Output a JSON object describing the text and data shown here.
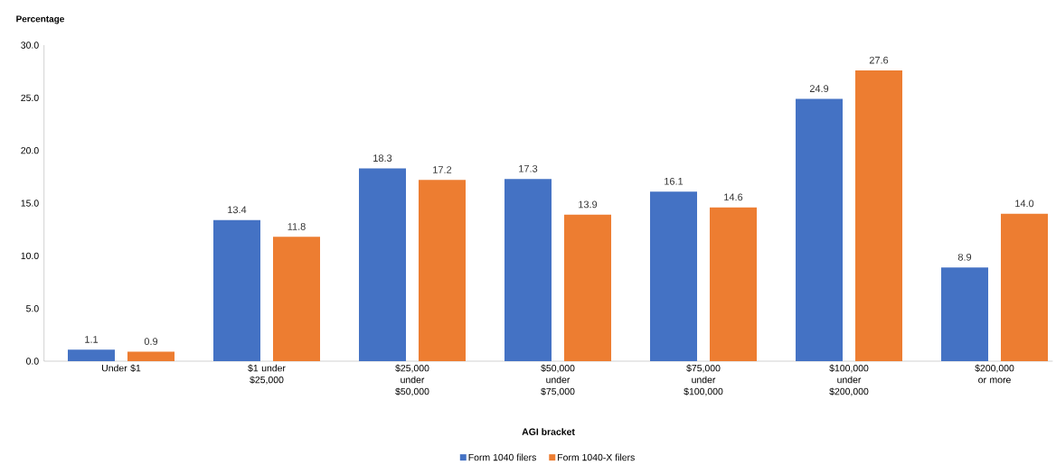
{
  "chart_data": {
    "type": "bar",
    "xlabel": "AGI bracket",
    "ylabel": "Percentage",
    "categories": [
      "Under $1",
      "$1 under $25,000",
      "$25,000 under $50,000",
      "$50,000 under $75,000",
      "$75,000 under $100,000",
      "$100,000 under $200,000",
      "$200,000 or more"
    ],
    "series": [
      {
        "name": "Form 1040 filers",
        "color": "#4472c4",
        "values": [
          1.1,
          13.4,
          18.3,
          17.3,
          16.1,
          24.9,
          8.9
        ],
        "value_labels": [
          "1.1",
          "13.4",
          "18.3",
          "17.3",
          "16.1",
          "24.9",
          "8.9"
        ]
      },
      {
        "name": "Form 1040-X filers",
        "color": "#ed7d31",
        "values": [
          0.9,
          11.8,
          17.2,
          13.9,
          14.6,
          27.6,
          14.0
        ],
        "value_labels": [
          "0.9",
          "11.8",
          "17.2",
          "13.9",
          "14.6",
          "27.6",
          "14.0"
        ]
      }
    ],
    "ylim": [
      0,
      30
    ],
    "yticks": [
      {
        "value": 0,
        "label": "0.0"
      },
      {
        "value": 5,
        "label": "5.0"
      },
      {
        "value": 10,
        "label": "10.0"
      },
      {
        "value": 15,
        "label": "15.0"
      },
      {
        "value": 20,
        "label": "20.0"
      },
      {
        "value": 25,
        "label": "25.0"
      },
      {
        "value": 30,
        "label": "30.0"
      }
    ],
    "legend": "bottom"
  }
}
